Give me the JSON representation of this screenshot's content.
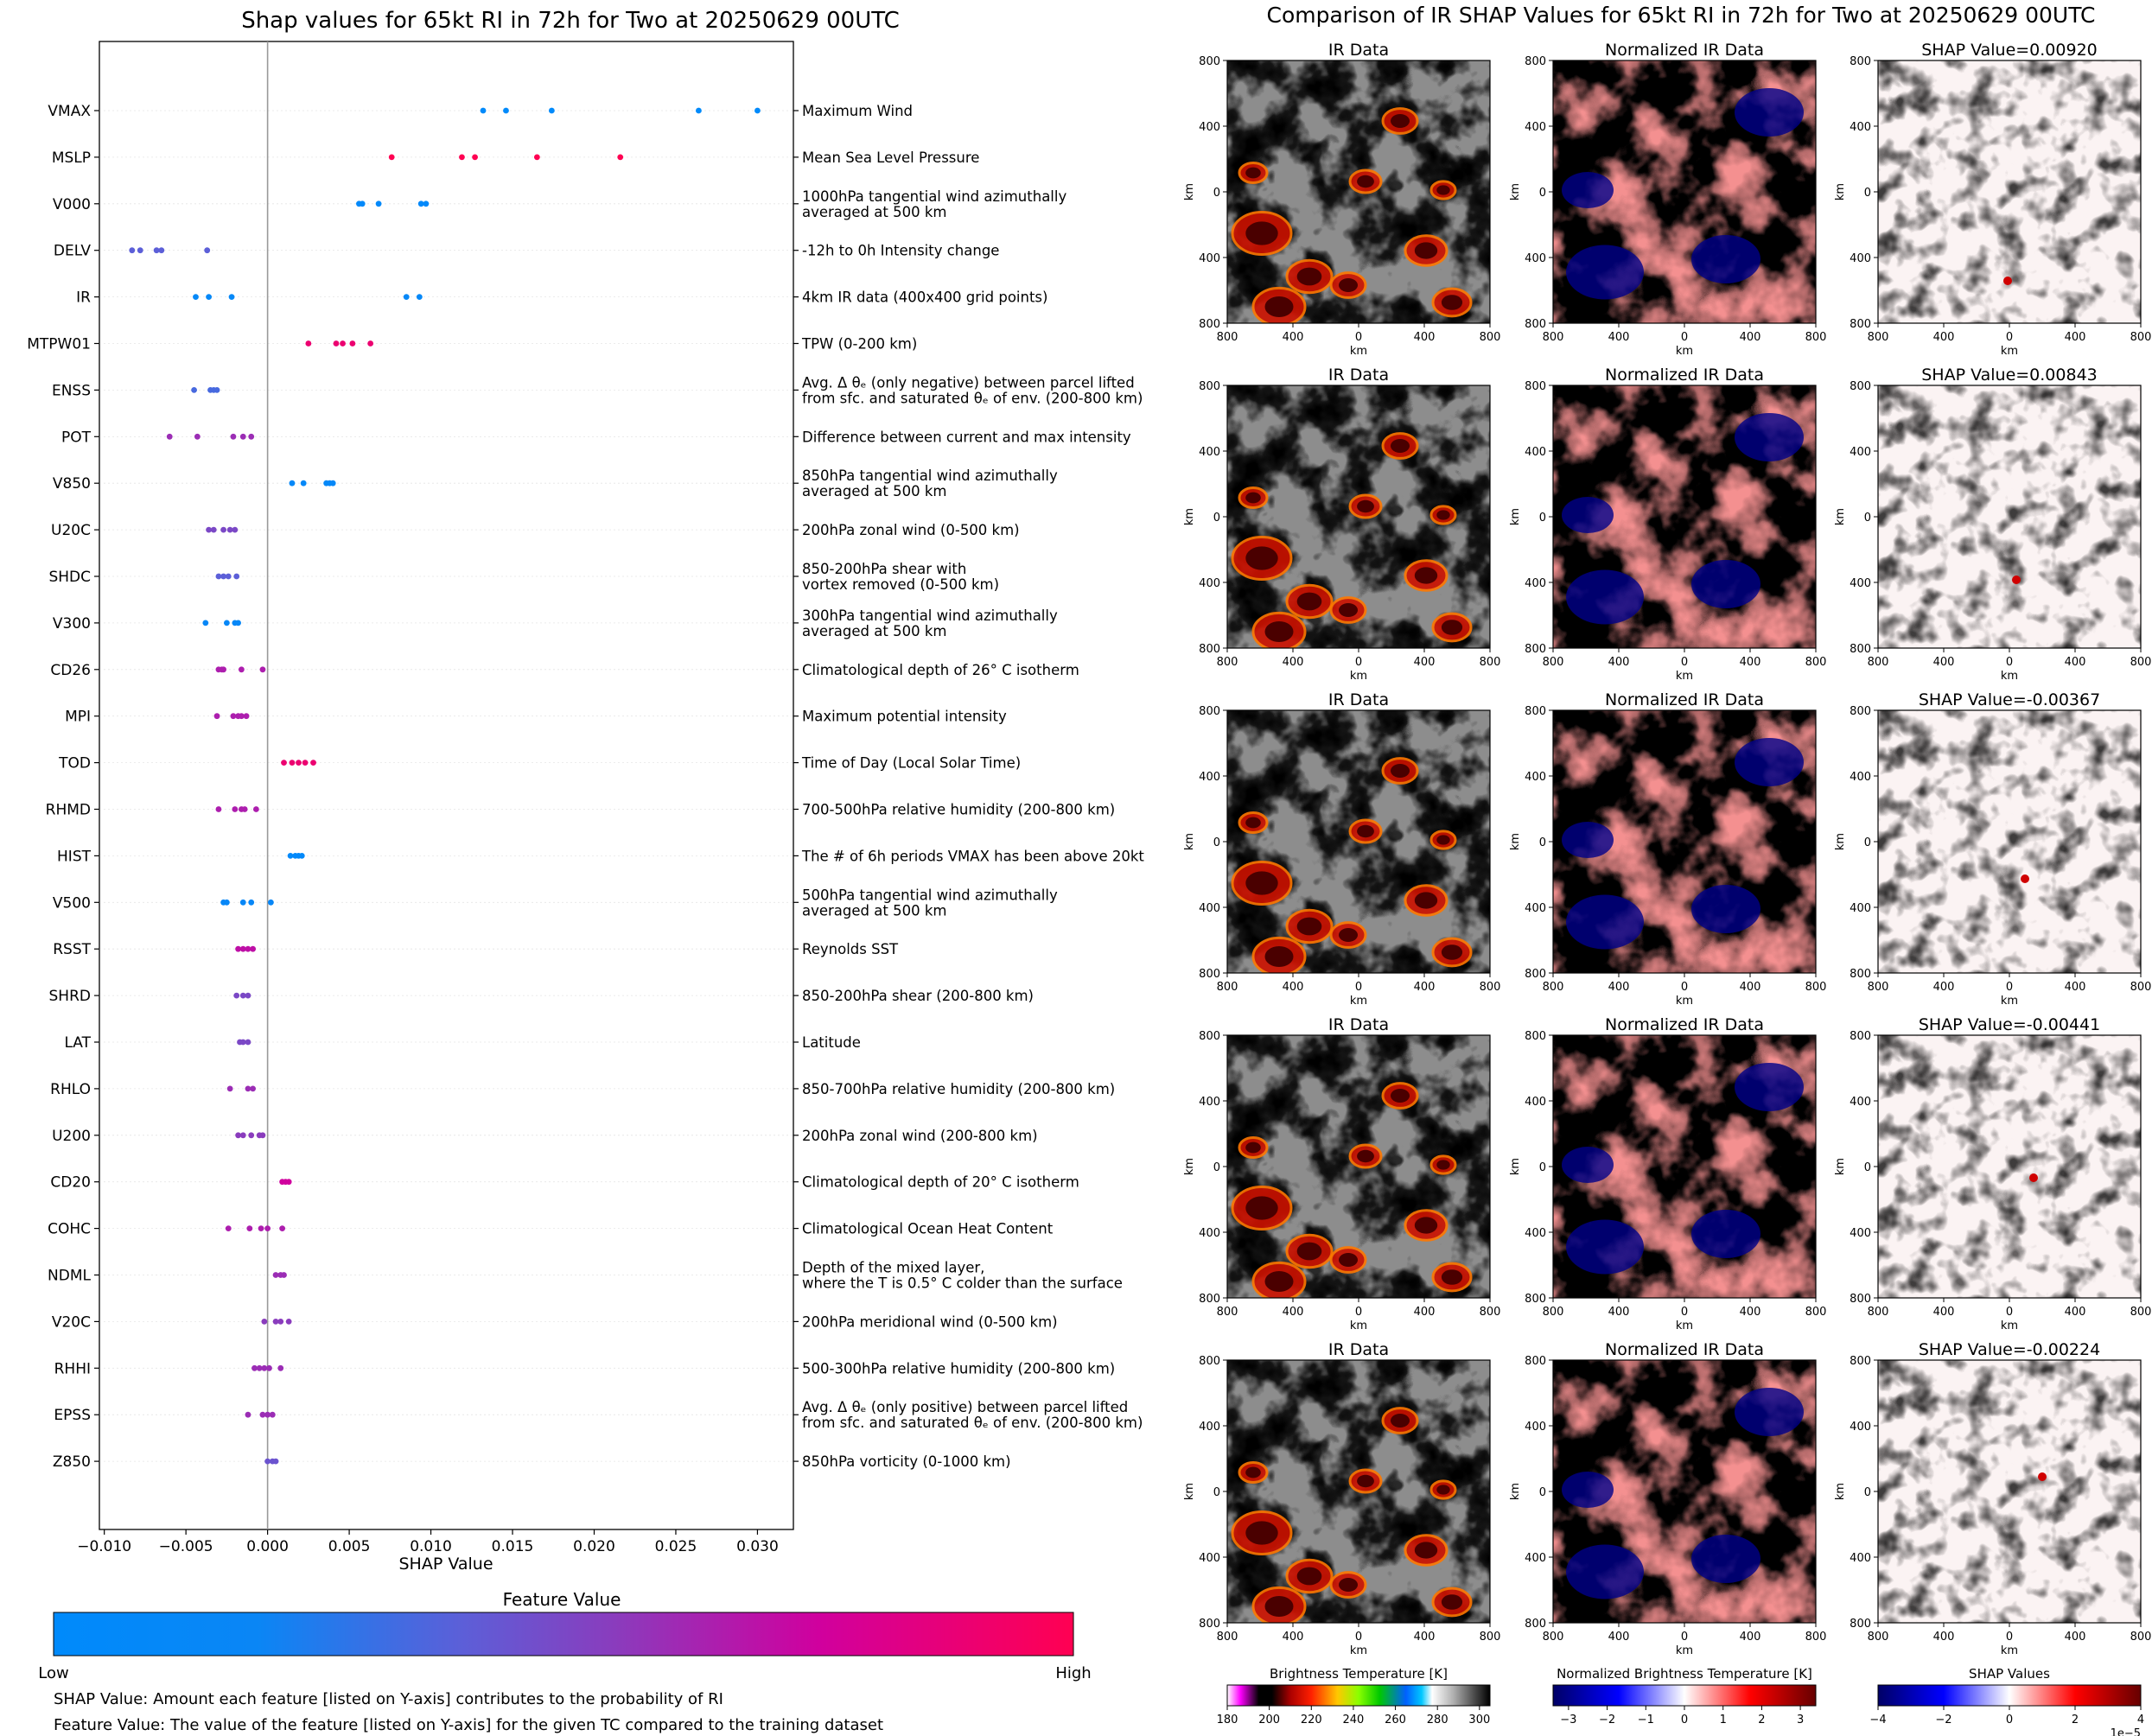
{
  "left_panel": {
    "title": "Shap values for 65kt RI in 72h for Two at 20250629 00UTC",
    "xlabel": "SHAP Value",
    "colorbar_title": "Feature Value",
    "colorbar_low": "Low",
    "colorbar_high": "High",
    "note1": "SHAP Value: Amount each feature [listed on Y-axis] contributes to the probability of RI",
    "note2": "Feature Value: The value of the feature [listed on Y-axis] for the given TC compared to the training dataset"
  },
  "right_panel": {
    "title": "Comparison of IR SHAP Values for 65kt RI in 72h for Two at 20250629 00UTC",
    "col_titles": [
      "IR Data",
      "Normalized IR Data"
    ],
    "shap_title_prefix": "SHAP Value=",
    "axis_label": "km",
    "ticks": [
      "800",
      "400",
      "0",
      "400",
      "800"
    ],
    "colorbars": [
      {
        "label": "Brightness Temperature [K]",
        "ticks": [
          "180",
          "200",
          "220",
          "240",
          "260",
          "280",
          "300"
        ]
      },
      {
        "label": "Normalized Brightness Temperature [K]",
        "ticks": [
          "−3",
          "−2",
          "−1",
          "0",
          "1",
          "2",
          "3"
        ]
      },
      {
        "label": "SHAP Values",
        "ticks": [
          "−4",
          "−2",
          "0",
          "2",
          "4"
        ],
        "exponent": "1e−5"
      }
    ]
  },
  "colors": {
    "low": "#008afb",
    "high": "#ff0052",
    "zero_line": "#999999"
  },
  "chart_data": [
    {
      "type": "scatter",
      "title": "Shap values for 65kt RI in 72h for Two at 20250629 00UTC",
      "xlabel": "SHAP Value",
      "xlim": [
        -0.0103,
        0.0322
      ],
      "xticks": [
        -0.01,
        -0.005,
        0.0,
        0.005,
        0.01,
        0.015,
        0.02,
        0.025,
        0.03
      ],
      "xtick_labels": [
        "−0.010",
        "−0.005",
        "0.000",
        "0.005",
        "0.010",
        "0.015",
        "0.020",
        "0.025",
        "0.030"
      ],
      "features": [
        {
          "name": "VMAX",
          "desc": [
            "Maximum Wind"
          ],
          "fv": 0.0,
          "x": [
            0.0132,
            0.0146,
            0.0174,
            0.0264,
            0.03
          ]
        },
        {
          "name": "MSLP",
          "desc": [
            "Mean Sea Level Pressure"
          ],
          "fv": 1.0,
          "x": [
            0.0076,
            0.0119,
            0.0127,
            0.0165,
            0.0216
          ]
        },
        {
          "name": "V000",
          "desc": [
            "1000hPa tangential wind azimuthally",
            "averaged at 500 km"
          ],
          "fv": 0.05,
          "x": [
            0.0056,
            0.0058,
            0.0068,
            0.0094,
            0.0097
          ]
        },
        {
          "name": "DELV",
          "desc": [
            "-12h to 0h Intensity change"
          ],
          "fv": 0.4,
          "x": [
            -0.0083,
            -0.0078,
            -0.0068,
            -0.0065,
            -0.0037
          ]
        },
        {
          "name": "IR",
          "desc": [
            "4km IR data (400x400 grid points)"
          ],
          "fv": 0.1,
          "x": [
            -0.0044,
            -0.0036,
            -0.0022,
            0.0085,
            0.0093
          ]
        },
        {
          "name": "MTPW01",
          "desc": [
            "TPW (0-200 km)"
          ],
          "fv": 0.9,
          "x": [
            0.0025,
            0.0042,
            0.0046,
            0.0052,
            0.0063
          ]
        },
        {
          "name": "ENSS",
          "desc": [
            "Avg. Δ θₑ (only negative) between parcel lifted",
            "from sfc. and saturated θₑ of env. (200-800 km)"
          ],
          "fv": 0.35,
          "x": [
            -0.0045,
            -0.0035,
            -0.0033,
            -0.0031
          ]
        },
        {
          "name": "POT",
          "desc": [
            "Difference between current and max intensity"
          ],
          "fv": 0.6,
          "x": [
            -0.006,
            -0.0043,
            -0.0021,
            -0.0015,
            -0.001
          ]
        },
        {
          "name": "V850",
          "desc": [
            "850hPa tangential wind azimuthally",
            "averaged at 500 km"
          ],
          "fv": 0.1,
          "x": [
            0.0015,
            0.0022,
            0.0036,
            0.0038,
            0.004
          ]
        },
        {
          "name": "U20C",
          "desc": [
            "200hPa zonal wind (0-500 km)"
          ],
          "fv": 0.5,
          "x": [
            -0.0036,
            -0.0033,
            -0.0027,
            -0.0023,
            -0.002
          ]
        },
        {
          "name": "SHDC",
          "desc": [
            "850-200hPa shear with",
            "vortex removed (0-500 km)"
          ],
          "fv": 0.4,
          "x": [
            -0.003,
            -0.0027,
            -0.0024,
            -0.0019
          ]
        },
        {
          "name": "V300",
          "desc": [
            "300hPa tangential wind azimuthally",
            "averaged at 500 km"
          ],
          "fv": 0.15,
          "x": [
            -0.0038,
            -0.0025,
            -0.002,
            -0.0018
          ]
        },
        {
          "name": "CD26",
          "desc": [
            "Climatological depth of 26° C isotherm"
          ],
          "fv": 0.65,
          "x": [
            -0.003,
            -0.0028,
            -0.0027,
            -0.0016,
            -0.0003
          ]
        },
        {
          "name": "MPI",
          "desc": [
            "Maximum potential intensity"
          ],
          "fv": 0.65,
          "x": [
            -0.0031,
            -0.0021,
            -0.0018,
            -0.0016,
            -0.0013
          ]
        },
        {
          "name": "TOD",
          "desc": [
            "Time of Day (Local Solar Time)"
          ],
          "fv": 0.9,
          "x": [
            0.001,
            0.0015,
            0.0019,
            0.0023,
            0.0028
          ]
        },
        {
          "name": "RHMD",
          "desc": [
            "700-500hPa relative humidity (200-800 km)"
          ],
          "fv": 0.65,
          "x": [
            -0.003,
            -0.002,
            -0.0016,
            -0.0014,
            -0.0007
          ]
        },
        {
          "name": "HIST",
          "desc": [
            "The # of 6h periods VMAX has been above 20kt"
          ],
          "fv": 0.05,
          "x": [
            0.0014,
            0.0017,
            0.0019,
            0.0021
          ]
        },
        {
          "name": "V500",
          "desc": [
            "500hPa tangential wind azimuthally",
            "averaged at 500 km"
          ],
          "fv": 0.15,
          "x": [
            -0.0027,
            -0.0025,
            -0.0015,
            -0.001,
            0.0002
          ]
        },
        {
          "name": "RSST",
          "desc": [
            "Reynolds SST"
          ],
          "fv": 0.7,
          "x": [
            -0.0018,
            -0.0015,
            -0.0012,
            -0.0009
          ]
        },
        {
          "name": "SHRD",
          "desc": [
            "850-200hPa shear (200-800 km)"
          ],
          "fv": 0.5,
          "x": [
            -0.0019,
            -0.0015,
            -0.0012
          ]
        },
        {
          "name": "LAT",
          "desc": [
            "Latitude"
          ],
          "fv": 0.5,
          "x": [
            -0.0017,
            -0.0015,
            -0.0012
          ]
        },
        {
          "name": "RHLO",
          "desc": [
            "850-700hPa relative humidity (200-800 km)"
          ],
          "fv": 0.6,
          "x": [
            -0.0023,
            -0.0012,
            -0.0009
          ]
        },
        {
          "name": "U200",
          "desc": [
            "200hPa zonal wind (200-800 km)"
          ],
          "fv": 0.55,
          "x": [
            -0.0018,
            -0.0015,
            -0.001,
            -0.0005,
            -0.0003
          ]
        },
        {
          "name": "CD20",
          "desc": [
            "Climatological depth of 20° C isotherm"
          ],
          "fv": 0.75,
          "x": [
            0.0009,
            0.0011,
            0.0013
          ]
        },
        {
          "name": "COHC",
          "desc": [
            "Climatological Ocean Heat Content"
          ],
          "fv": 0.65,
          "x": [
            -0.0024,
            -0.0011,
            -0.0004,
            0.0,
            0.0009
          ]
        },
        {
          "name": "NDML",
          "desc": [
            "Depth of the mixed layer,",
            "where the T is 0.5° C colder than the surface"
          ],
          "fv": 0.6,
          "x": [
            0.0005,
            0.0008,
            0.001
          ]
        },
        {
          "name": "V20C",
          "desc": [
            "200hPa meridional wind (0-500 km)"
          ],
          "fv": 0.55,
          "x": [
            -0.0002,
            0.0005,
            0.0008,
            0.0013
          ]
        },
        {
          "name": "RHHI",
          "desc": [
            "500-300hPa relative humidity (200-800 km)"
          ],
          "fv": 0.6,
          "x": [
            -0.0008,
            -0.0005,
            -0.0002,
            0.0001,
            0.0008
          ]
        },
        {
          "name": "EPSS",
          "desc": [
            "Avg. Δ θₑ (only positive) between parcel lifted",
            "from sfc. and saturated θₑ of env. (200-800 km)"
          ],
          "fv": 0.6,
          "x": [
            -0.0012,
            -0.0003,
            0.0,
            0.0003
          ]
        },
        {
          "name": "Z850",
          "desc": [
            "850hPa vorticity (0-1000 km)"
          ],
          "fv": 0.45,
          "x": [
            0.0,
            0.0003,
            0.0005
          ]
        }
      ]
    },
    {
      "type": "heatmap",
      "title": "Comparison of IR SHAP Values for 65kt RI in 72h for Two at 20250629 00UTC",
      "rows": [
        {
          "shap_value": "0.00920"
        },
        {
          "shap_value": "0.00843"
        },
        {
          "shap_value": "-0.00367"
        },
        {
          "shap_value": "-0.00441"
        },
        {
          "shap_value": "-0.00224"
        }
      ],
      "axis_range_km": [
        -800,
        800
      ]
    }
  ]
}
